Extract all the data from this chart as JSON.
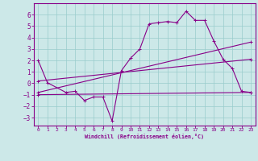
{
  "title": "",
  "xlabel": "Windchill (Refroidissement éolien,°C)",
  "bg_color": "#cce8e8",
  "line_color": "#880088",
  "grid_color": "#99cccc",
  "xlim": [
    -0.5,
    23.5
  ],
  "ylim": [
    -3.7,
    7.0
  ],
  "yticks": [
    -3,
    -2,
    -1,
    0,
    1,
    2,
    3,
    4,
    5,
    6
  ],
  "xticks": [
    0,
    1,
    2,
    3,
    4,
    5,
    6,
    7,
    8,
    9,
    10,
    11,
    12,
    13,
    14,
    15,
    16,
    17,
    18,
    19,
    20,
    21,
    22,
    23
  ],
  "line1_x": [
    0,
    1,
    3,
    4,
    5,
    6,
    7,
    8,
    9,
    10,
    11,
    12,
    13,
    14,
    15,
    16,
    17,
    18,
    19,
    20,
    21,
    22,
    23
  ],
  "line1_y": [
    2.0,
    0.05,
    -0.8,
    -0.7,
    -1.5,
    -1.2,
    -1.2,
    -3.3,
    1.1,
    2.2,
    3.0,
    5.2,
    5.3,
    5.4,
    5.3,
    6.3,
    5.5,
    5.5,
    3.7,
    2.1,
    1.3,
    -0.7,
    -0.8
  ],
  "line3_x": [
    0,
    23
  ],
  "line3_y": [
    -0.8,
    3.6
  ],
  "line4_x": [
    0,
    23
  ],
  "line4_y": [
    -1.0,
    -0.8
  ],
  "line5_x": [
    0,
    23
  ],
  "line5_y": [
    0.2,
    2.1
  ]
}
